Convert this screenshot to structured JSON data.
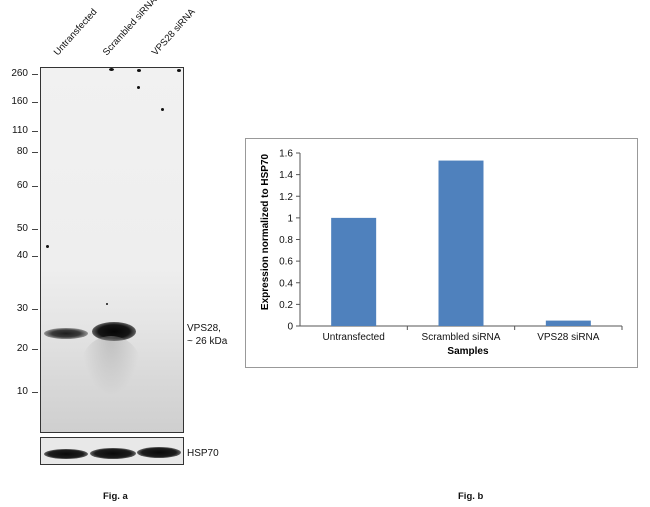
{
  "fig_a": {
    "lanes": [
      "Untransfected",
      "Scrambled siRNA",
      "VPS28 siRNA"
    ],
    "markers": [
      "260",
      "160",
      "110",
      "80",
      "60",
      "50",
      "40",
      "30",
      "20",
      "10"
    ],
    "band_label_line1": "VPS28,",
    "band_label_line2": "~ 26 kDa",
    "loading_control_label": "HSP70",
    "caption": "Fig. a"
  },
  "fig_b": {
    "caption": "Fig. b"
  },
  "chart_data": {
    "type": "bar",
    "categories": [
      "Untransfected",
      "Scrambled siRNA",
      "VPS28 siRNA"
    ],
    "values": [
      1.0,
      1.53,
      0.05
    ],
    "xlabel": "Samples",
    "ylabel": "Expression normalized to HSP70",
    "ylim": [
      0,
      1.6
    ],
    "yticks": [
      "0",
      "0.2",
      "0.4",
      "0.6",
      "0.8",
      "1",
      "1.2",
      "1.4",
      "1.6"
    ],
    "bar_color": "#4f81bd",
    "grid": false
  }
}
